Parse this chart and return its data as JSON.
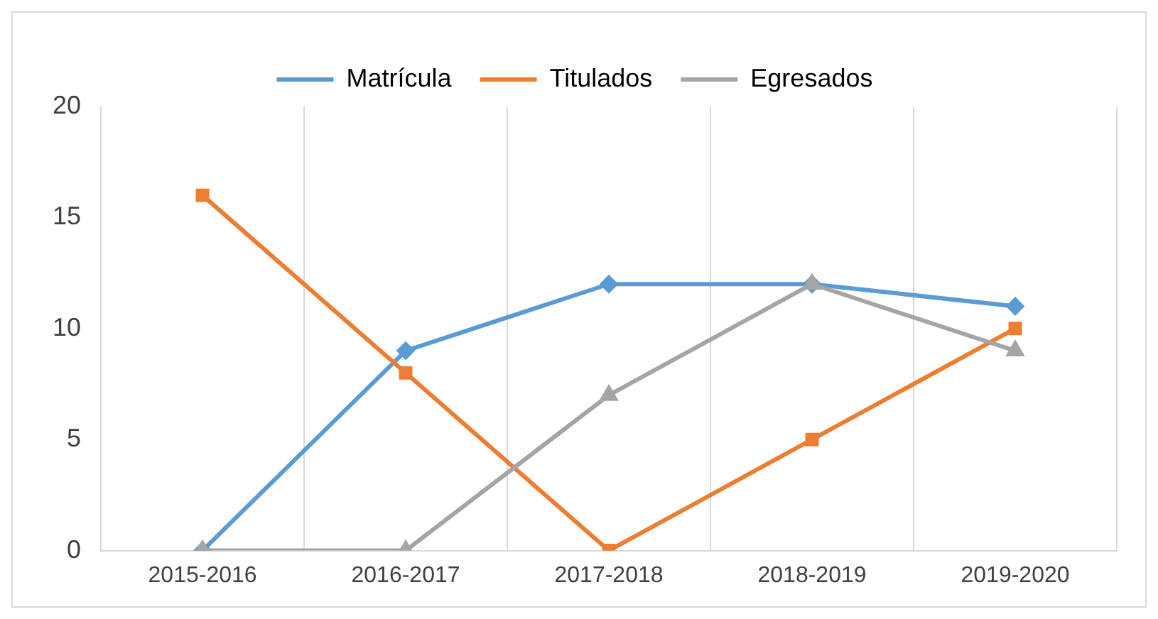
{
  "chart_data": {
    "type": "line",
    "categories": [
      "2015-2016",
      "2016-2017",
      "2017-2018",
      "2018-2019",
      "2019-2020"
    ],
    "series": [
      {
        "name": "Matrícula",
        "color": "#5b9bd5",
        "marker": "diamond",
        "values": [
          0,
          9,
          12,
          12,
          11
        ]
      },
      {
        "name": "Titulados",
        "color": "#ed7d31",
        "marker": "square",
        "values": [
          16,
          8,
          0,
          5,
          10
        ]
      },
      {
        "name": "Egresados",
        "color": "#a5a5a5",
        "marker": "triangle",
        "values": [
          0,
          0,
          7,
          12,
          9
        ]
      }
    ],
    "ylim": [
      0,
      20
    ],
    "yticks": [
      0,
      5,
      10,
      15,
      20
    ],
    "grid": "x",
    "legend": "top"
  }
}
